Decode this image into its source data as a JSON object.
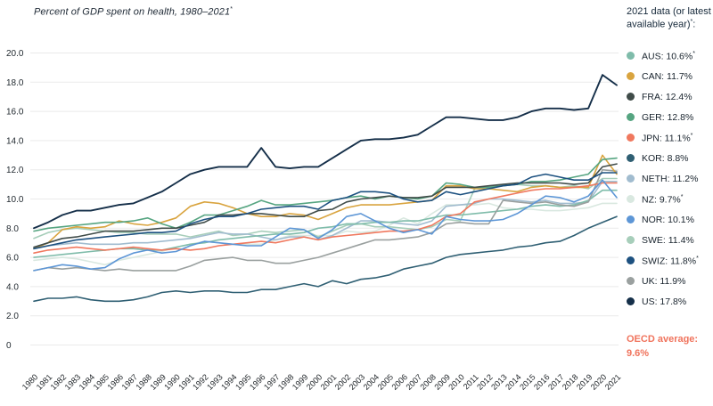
{
  "header": {
    "title": "Percent of GDP spent on health, 1980–2021",
    "title_note": "*"
  },
  "legend": {
    "header_pre": "2021 data (or latest available year)",
    "header_note": "*",
    "header_suffix": ":",
    "items": [
      {
        "code": "AUS",
        "value": "10.6%",
        "note": "*",
        "color": "#7fbcaa"
      },
      {
        "code": "CAN",
        "value": "11.7%",
        "note": "",
        "color": "#d9a43f"
      },
      {
        "code": "FRA",
        "value": "12.4%",
        "note": "",
        "color": "#404c49"
      },
      {
        "code": "GER",
        "value": "12.8%",
        "note": "",
        "color": "#56a581"
      },
      {
        "code": "JPN",
        "value": "11.1%",
        "note": "*",
        "color": "#f0785e"
      },
      {
        "code": "KOR",
        "value": "8.8%",
        "note": "",
        "color": "#2f5f73"
      },
      {
        "code": "NETH",
        "value": "11.2%",
        "note": "",
        "color": "#a1bccf"
      },
      {
        "code": "NZ",
        "value": "9.7%",
        "note": "*",
        "color": "#d9e8e0"
      },
      {
        "code": "NOR",
        "value": "10.1%",
        "note": "",
        "color": "#5d96d6"
      },
      {
        "code": "SWE",
        "value": "11.4%",
        "note": "",
        "color": "#a7ceba"
      },
      {
        "code": "SWIZ",
        "value": "11.8%",
        "note": "*",
        "color": "#1d5180"
      },
      {
        "code": "UK",
        "value": "11.9%",
        "note": "",
        "color": "#9aa09f"
      },
      {
        "code": "US",
        "value": "17.8%",
        "note": "",
        "color": "#152f49"
      }
    ],
    "oecd_label": "OECD average:",
    "oecd_value": "9.6%",
    "oecd_color": "#f0735c"
  },
  "chart_data": {
    "type": "line",
    "title": "Percent of GDP spent on health, 1980–2021*",
    "xlabel": "",
    "ylabel": "Percent of GDP",
    "ylim": [
      0,
      20
    ],
    "yticks": [
      0,
      2,
      4,
      6,
      8,
      10,
      12,
      14,
      16,
      18,
      20
    ],
    "grid": true,
    "legend_position": "right",
    "x": [
      1980,
      1981,
      1982,
      1983,
      1984,
      1985,
      1986,
      1987,
      1988,
      1989,
      1990,
      1991,
      1992,
      1993,
      1994,
      1995,
      1996,
      1997,
      1998,
      1999,
      2000,
      2001,
      2002,
      2003,
      2004,
      2005,
      2006,
      2007,
      2008,
      2009,
      2010,
      2011,
      2012,
      2013,
      2014,
      2015,
      2016,
      2017,
      2018,
      2019,
      2020,
      2021
    ],
    "series": [
      {
        "name": "NZ",
        "color": "#d9e8e0",
        "values": [
          5.8,
          5.9,
          6.0,
          5.9,
          5.7,
          5.5,
          5.8,
          6.0,
          6.2,
          6.4,
          6.7,
          6.9,
          7.1,
          7.0,
          6.9,
          6.9,
          6.9,
          7.2,
          7.5,
          7.5,
          7.5,
          7.5,
          7.8,
          7.7,
          7.8,
          8.2,
          8.7,
          8.3,
          9.0,
          9.6,
          9.6,
          9.6,
          9.7,
          9.4,
          9.3,
          9.3,
          9.2,
          9.2,
          9.3,
          9.4,
          9.7,
          9.7
        ]
      },
      {
        "name": "SWE",
        "color": "#a7ceba",
        "values": [
          7.3,
          7.7,
          7.9,
          8.0,
          7.9,
          7.8,
          7.7,
          7.7,
          7.6,
          7.6,
          7.6,
          7.4,
          7.6,
          7.8,
          7.5,
          7.6,
          7.8,
          7.7,
          7.8,
          7.9,
          7.4,
          7.8,
          8.2,
          8.3,
          8.1,
          8.1,
          8.0,
          7.9,
          8.1,
          8.6,
          8.5,
          10.7,
          10.8,
          11.0,
          11.0,
          10.9,
          10.9,
          10.8,
          10.9,
          10.7,
          11.4,
          11.4
        ]
      },
      {
        "name": "NETH",
        "color": "#a1bccf",
        "values": [
          6.6,
          6.8,
          6.9,
          7.0,
          6.9,
          6.9,
          6.9,
          7.0,
          7.0,
          7.1,
          7.2,
          7.3,
          7.5,
          7.7,
          7.6,
          7.6,
          7.4,
          7.2,
          7.4,
          7.4,
          7.2,
          7.5,
          8.0,
          8.5,
          8.5,
          8.4,
          8.3,
          8.2,
          8.5,
          9.5,
          9.6,
          9.7,
          10.0,
          10.0,
          9.9,
          9.8,
          9.9,
          9.7,
          9.7,
          9.8,
          11.2,
          11.2
        ]
      },
      {
        "name": "AUS",
        "color": "#7fbcaa",
        "values": [
          6.0,
          6.1,
          6.2,
          6.3,
          6.4,
          6.5,
          6.6,
          6.6,
          6.5,
          6.5,
          6.7,
          6.9,
          7.0,
          7.2,
          7.3,
          7.4,
          7.5,
          7.6,
          7.6,
          7.7,
          8.0,
          8.1,
          8.3,
          8.3,
          8.4,
          8.4,
          8.5,
          8.5,
          8.7,
          8.9,
          8.9,
          9.0,
          9.1,
          9.2,
          9.3,
          9.5,
          9.6,
          9.5,
          9.6,
          9.9,
          10.6,
          10.6
        ]
      },
      {
        "name": "UK",
        "color": "#9aa09f",
        "values": [
          5.1,
          5.3,
          5.2,
          5.3,
          5.2,
          5.1,
          5.2,
          5.1,
          5.1,
          5.1,
          5.1,
          5.4,
          5.8,
          5.9,
          6.0,
          5.8,
          5.8,
          5.6,
          5.6,
          5.8,
          6.0,
          6.3,
          6.6,
          6.9,
          7.2,
          7.2,
          7.3,
          7.4,
          7.7,
          8.3,
          8.4,
          8.3,
          8.3,
          9.9,
          9.8,
          9.7,
          9.8,
          9.6,
          9.5,
          9.8,
          12.0,
          11.9
        ]
      },
      {
        "name": "CAN",
        "color": "#d9a43f",
        "values": [
          6.6,
          7.0,
          7.9,
          8.1,
          8.0,
          8.1,
          8.5,
          8.3,
          8.2,
          8.4,
          8.7,
          9.5,
          9.8,
          9.7,
          9.4,
          9.0,
          8.8,
          8.8,
          9.0,
          8.9,
          8.6,
          9.0,
          9.4,
          9.6,
          9.6,
          9.6,
          9.7,
          9.8,
          9.9,
          10.9,
          10.9,
          10.7,
          10.7,
          10.6,
          10.5,
          10.8,
          10.9,
          10.8,
          10.8,
          10.8,
          13.0,
          11.7
        ]
      },
      {
        "name": "JPN",
        "color": "#f0785e",
        "values": [
          6.3,
          6.5,
          6.6,
          6.7,
          6.6,
          6.5,
          6.6,
          6.7,
          6.6,
          6.5,
          6.6,
          6.5,
          6.6,
          6.8,
          6.9,
          7.0,
          7.1,
          7.0,
          7.2,
          7.4,
          7.2,
          7.4,
          7.5,
          7.6,
          7.7,
          7.8,
          7.8,
          7.9,
          8.2,
          8.8,
          9.0,
          9.8,
          10.0,
          10.2,
          10.4,
          10.6,
          10.7,
          10.7,
          10.8,
          10.9,
          11.1,
          11.1
        ]
      },
      {
        "name": "NOR",
        "color": "#5d96d6",
        "values": [
          5.1,
          5.3,
          5.5,
          5.4,
          5.2,
          5.3,
          5.9,
          6.3,
          6.5,
          6.3,
          6.4,
          6.8,
          7.1,
          7.0,
          6.9,
          6.8,
          6.8,
          7.4,
          8.0,
          7.9,
          7.3,
          7.9,
          8.8,
          9.0,
          8.5,
          8.0,
          7.7,
          7.9,
          7.6,
          8.8,
          8.6,
          8.5,
          8.5,
          8.6,
          9.0,
          9.6,
          10.2,
          10.1,
          9.8,
          10.2,
          11.3,
          10.1
        ]
      },
      {
        "name": "GER",
        "color": "#56a581",
        "values": [
          7.8,
          8.0,
          8.1,
          8.2,
          8.3,
          8.4,
          8.4,
          8.5,
          8.7,
          8.3,
          8.0,
          8.4,
          8.9,
          8.9,
          9.2,
          9.5,
          9.9,
          9.6,
          9.6,
          9.7,
          9.8,
          9.9,
          10.1,
          10.2,
          10.0,
          10.2,
          10.1,
          10.0,
          10.2,
          11.1,
          11.0,
          10.8,
          10.8,
          10.9,
          11.0,
          11.2,
          11.2,
          11.3,
          11.5,
          11.7,
          12.7,
          12.8
        ]
      },
      {
        "name": "FRA",
        "color": "#404c49",
        "values": [
          6.7,
          7.0,
          7.3,
          7.4,
          7.6,
          7.8,
          7.8,
          7.8,
          7.9,
          8.0,
          8.0,
          8.2,
          8.4,
          8.9,
          8.9,
          9.0,
          9.0,
          8.9,
          8.8,
          8.8,
          9.2,
          9.3,
          9.8,
          10.0,
          10.1,
          10.2,
          10.1,
          10.1,
          10.2,
          10.8,
          10.8,
          10.8,
          10.9,
          11.0,
          11.1,
          11.1,
          11.1,
          11.1,
          11.0,
          11.1,
          12.2,
          12.4
        ]
      },
      {
        "name": "KOR",
        "color": "#2f5f73",
        "values": [
          3.0,
          3.2,
          3.2,
          3.3,
          3.1,
          3.0,
          3.0,
          3.1,
          3.3,
          3.6,
          3.7,
          3.6,
          3.7,
          3.7,
          3.6,
          3.6,
          3.8,
          3.8,
          4.0,
          4.2,
          4.0,
          4.4,
          4.2,
          4.5,
          4.6,
          4.8,
          5.2,
          5.4,
          5.6,
          6.0,
          6.2,
          6.3,
          6.4,
          6.5,
          6.7,
          6.8,
          7.0,
          7.1,
          7.5,
          8.0,
          8.4,
          8.8
        ]
      },
      {
        "name": "SWIZ",
        "color": "#1d5180",
        "values": [
          6.6,
          6.8,
          7.0,
          7.2,
          7.3,
          7.4,
          7.5,
          7.6,
          7.7,
          7.7,
          7.8,
          8.3,
          8.6,
          8.8,
          8.8,
          9.0,
          9.3,
          9.4,
          9.5,
          9.5,
          9.3,
          9.9,
          10.1,
          10.5,
          10.5,
          10.4,
          10.0,
          9.8,
          9.9,
          10.5,
          10.3,
          10.5,
          10.7,
          10.9,
          11.0,
          11.5,
          11.7,
          11.5,
          11.3,
          11.3,
          11.8,
          11.8
        ]
      },
      {
        "name": "US",
        "color": "#152f49",
        "width": 1.9,
        "values": [
          8.0,
          8.4,
          8.9,
          9.2,
          9.2,
          9.4,
          9.6,
          9.7,
          10.1,
          10.5,
          11.1,
          11.7,
          12.0,
          12.2,
          12.2,
          12.2,
          13.5,
          12.2,
          12.1,
          12.2,
          12.2,
          12.8,
          13.4,
          14.0,
          14.1,
          14.1,
          14.2,
          14.4,
          15.0,
          15.6,
          15.6,
          15.5,
          15.4,
          15.4,
          15.6,
          16.0,
          16.2,
          16.2,
          16.1,
          16.2,
          18.5,
          17.8
        ]
      }
    ]
  }
}
